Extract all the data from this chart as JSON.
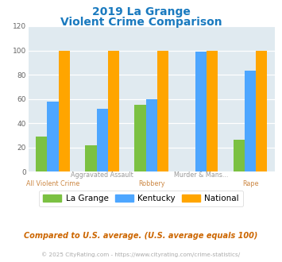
{
  "title_line1": "2019 La Grange",
  "title_line2": "Violent Crime Comparison",
  "la_grange": [
    29,
    22,
    55,
    0,
    26
  ],
  "kentucky": [
    58,
    52,
    60,
    99,
    83
  ],
  "national": [
    100,
    100,
    100,
    100,
    100
  ],
  "line1_labels": [
    "",
    "Aggravated Assault",
    "",
    "Murder & Mans...",
    ""
  ],
  "line2_labels": [
    "All Violent Crime",
    "",
    "Robbery",
    "",
    "Rape"
  ],
  "colors": {
    "la_grange": "#7bc142",
    "kentucky": "#4da6ff",
    "national": "#ffa500",
    "background": "#e0eaf0",
    "title": "#1a7abf",
    "grid": "#ffffff",
    "x_top_label": "#999999",
    "x_bot_label": "#cc8844",
    "note_text": "#cc6600",
    "footer_text": "#aaaaaa",
    "footer_link": "#4499cc"
  },
  "ylim": [
    0,
    120
  ],
  "yticks": [
    0,
    20,
    40,
    60,
    80,
    100,
    120
  ],
  "legend_labels": [
    "La Grange",
    "Kentucky",
    "National"
  ],
  "note": "Compared to U.S. average. (U.S. average equals 100)",
  "footer_plain": "© 2025 CityRating.com - ",
  "footer_link": "https://www.cityrating.com/crime-statistics/",
  "bar_width": 0.23,
  "n_cats": 5
}
